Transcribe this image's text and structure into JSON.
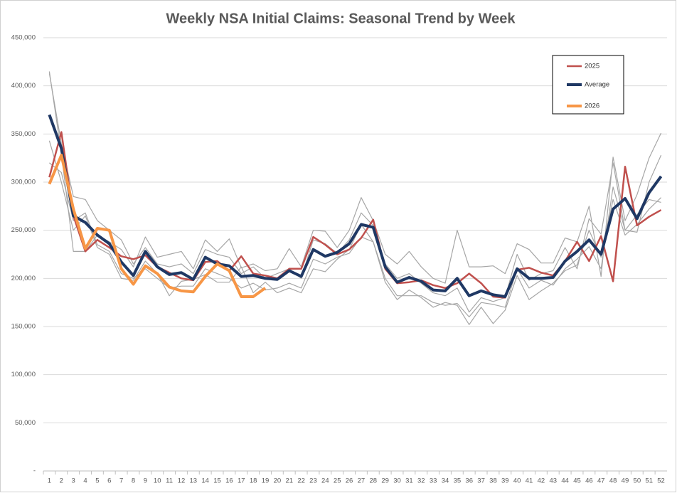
{
  "chart_data": {
    "type": "line",
    "title": "Weekly NSA Initial Claims: Seasonal Trend by Week",
    "categories": [
      "1",
      "2",
      "3",
      "4",
      "5",
      "6",
      "7",
      "8",
      "9",
      "10",
      "11",
      "12",
      "13",
      "14",
      "15",
      "16",
      "17",
      "18",
      "19",
      "20",
      "21",
      "22",
      "23",
      "24",
      "25",
      "26",
      "27",
      "28",
      "29",
      "30",
      "31",
      "32",
      "33",
      "34",
      "35",
      "36",
      "37",
      "38",
      "39",
      "40",
      "41",
      "42",
      "43",
      "44",
      "45",
      "46",
      "47",
      "48",
      "49",
      "50",
      "51",
      "52"
    ],
    "ylim": [
      0,
      450000
    ],
    "yticks": [
      {
        "value": 0,
        "label": "-"
      },
      {
        "value": 50000,
        "label": "50,000"
      },
      {
        "value": 100000,
        "label": "100,000"
      },
      {
        "value": 150000,
        "label": "150,000"
      },
      {
        "value": 200000,
        "label": "200,000"
      },
      {
        "value": 250000,
        "label": "250,000"
      },
      {
        "value": 300000,
        "label": "300,000"
      },
      {
        "value": 350000,
        "label": "350,000"
      },
      {
        "value": 400000,
        "label": "400,000"
      },
      {
        "value": 450000,
        "label": "450,000"
      }
    ],
    "grid": true,
    "legend": "upper right",
    "series": [
      {
        "color": "#a6a6a6",
        "values": [
          415000,
          330000,
          228000,
          228000,
          245000,
          238000,
          230000,
          212000,
          243000,
          222000,
          225000,
          228000,
          210000,
          240000,
          228000,
          241000,
          211000,
          215000,
          208000,
          210000,
          231000,
          212000,
          250000,
          249000,
          232000,
          250000,
          284000,
          260000,
          225000,
          215000,
          228000,
          212000,
          200000,
          195000,
          250000,
          212000,
          212000,
          213000,
          205000,
          236000,
          230000,
          216000,
          216000,
          242000,
          238000,
          275000,
          202000,
          326000,
          260000,
          287000,
          325000,
          351000
        ]
      },
      {
        "color": "#a6a6a6",
        "values": [
          413000,
          340000,
          285000,
          282000,
          260000,
          250000,
          240000,
          215000,
          232000,
          215000,
          212000,
          215000,
          205000,
          230000,
          225000,
          222000,
          205000,
          212000,
          200000,
          205000,
          210000,
          200000,
          240000,
          236000,
          226000,
          240000,
          268000,
          255000,
          215000,
          200000,
          205000,
          195000,
          185000,
          182000,
          190000,
          165000,
          180000,
          176000,
          180000,
          225000,
          198000,
          205000,
          208000,
          232000,
          210000,
          262000,
          246000,
          320000,
          250000,
          248000,
          300000,
          328000
        ]
      },
      {
        "color": "#a6a6a6",
        "values": [
          343000,
          300000,
          250000,
          265000,
          232000,
          225000,
          200000,
          198000,
          218000,
          205000,
          182000,
          197000,
          199000,
          204000,
          196000,
          196000,
          212000,
          185000,
          196000,
          185000,
          190000,
          185000,
          210000,
          207000,
          220000,
          230000,
          256000,
          238000,
          196000,
          178000,
          188000,
          180000,
          170000,
          175000,
          172000,
          152000,
          170000,
          153000,
          167000,
          203000,
          178000,
          187000,
          195000,
          208000,
          214000,
          250000,
          222000,
          282000,
          245000,
          256000,
          272000,
          284000
        ]
      },
      {
        "color": "#a6a6a6",
        "values": [
          320000,
          310000,
          260000,
          268000,
          235000,
          228000,
          205000,
          200000,
          210000,
          200000,
          190000,
          192000,
          192000,
          210000,
          205000,
          200000,
          190000,
          195000,
          188000,
          190000,
          195000,
          190000,
          220000,
          215000,
          222000,
          226000,
          243000,
          238000,
          200000,
          182000,
          182000,
          182000,
          175000,
          172000,
          174000,
          160000,
          175000,
          173000,
          170000,
          210000,
          190000,
          198000,
          193000,
          210000,
          220000,
          233000,
          210000,
          295000,
          250000,
          266000,
          282000,
          279000
        ]
      },
      {
        "name": "2025",
        "color": "#c0504d",
        "values": [
          305000,
          352000,
          265000,
          228000,
          240000,
          232000,
          223000,
          220000,
          224000,
          212000,
          206000,
          200000,
          198000,
          217000,
          218000,
          208000,
          223000,
          205000,
          203000,
          200000,
          210000,
          210000,
          243000,
          235000,
          225000,
          230000,
          242000,
          261000,
          210000,
          195000,
          196000,
          198000,
          193000,
          190000,
          195000,
          205000,
          195000,
          181000,
          180000,
          209000,
          211000,
          206000,
          203000,
          218000,
          238000,
          218000,
          244000,
          197000,
          316000,
          255000,
          264000,
          271000
        ]
      },
      {
        "name": "Average",
        "color": "#1f3864",
        "values": [
          370000,
          335000,
          265000,
          258000,
          245000,
          236000,
          217000,
          203000,
          228000,
          212000,
          204000,
          206000,
          199000,
          222000,
          215000,
          213000,
          202000,
          203000,
          200000,
          199000,
          208000,
          202000,
          230000,
          223000,
          227000,
          236000,
          256000,
          253000,
          212000,
          196000,
          201000,
          197000,
          188000,
          187000,
          200000,
          182000,
          187000,
          183000,
          181000,
          210000,
          200000,
          200000,
          201000,
          218000,
          228000,
          240000,
          225000,
          272000,
          283000,
          262000,
          289000,
          306000
        ]
      },
      {
        "name": "2026",
        "color": "#f79646",
        "values": [
          298000,
          328000,
          272000,
          231000,
          252000,
          250000,
          210000,
          194000,
          213000,
          205000,
          191000,
          187000,
          186000,
          202000,
          215000,
          208000,
          181000,
          181000,
          190000,
          null,
          null,
          null,
          null,
          null,
          null,
          null,
          null,
          null,
          null,
          null,
          null,
          null,
          null,
          null,
          null,
          null,
          null,
          null,
          null,
          null,
          null,
          null,
          null,
          null,
          null,
          null,
          null,
          null,
          null,
          null,
          null,
          null
        ]
      }
    ]
  }
}
